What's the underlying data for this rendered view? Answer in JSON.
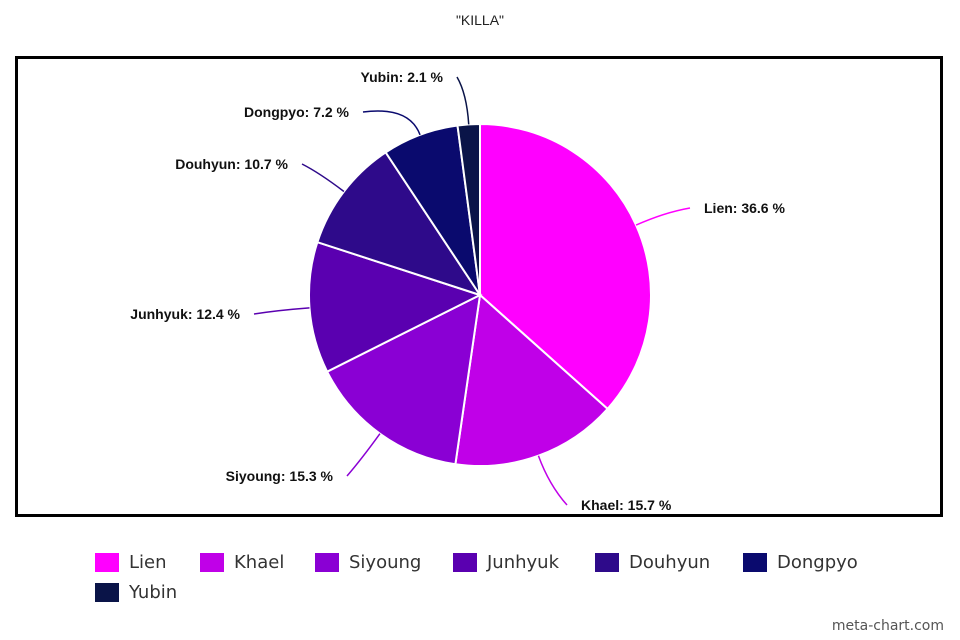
{
  "chart_data": {
    "type": "pie",
    "title": "\"KILLA\"",
    "categories": [
      "Lien",
      "Khael",
      "Siyoung",
      "Junhyuk",
      "Douhyun",
      "Dongpyo",
      "Yubin"
    ],
    "values": [
      36.6,
      15.7,
      15.3,
      12.4,
      10.7,
      7.2,
      2.1
    ],
    "labels": [
      "Lien: 36.6 %",
      "Khael: 15.7 %",
      "Siyoung: 15.3 %",
      "Junhyuk: 12.4 %",
      "Douhyun: 10.7 %",
      "Dongpyo: 7.2 %",
      "Yubin: 2.1 %"
    ],
    "colors": [
      "#ff00ff",
      "#c000e8",
      "#8a00d4",
      "#5a00b0",
      "#2e0a8a",
      "#0a0a6e",
      "#0a1448"
    ],
    "legend_position": "bottom"
  },
  "watermark": "meta-chart.com"
}
